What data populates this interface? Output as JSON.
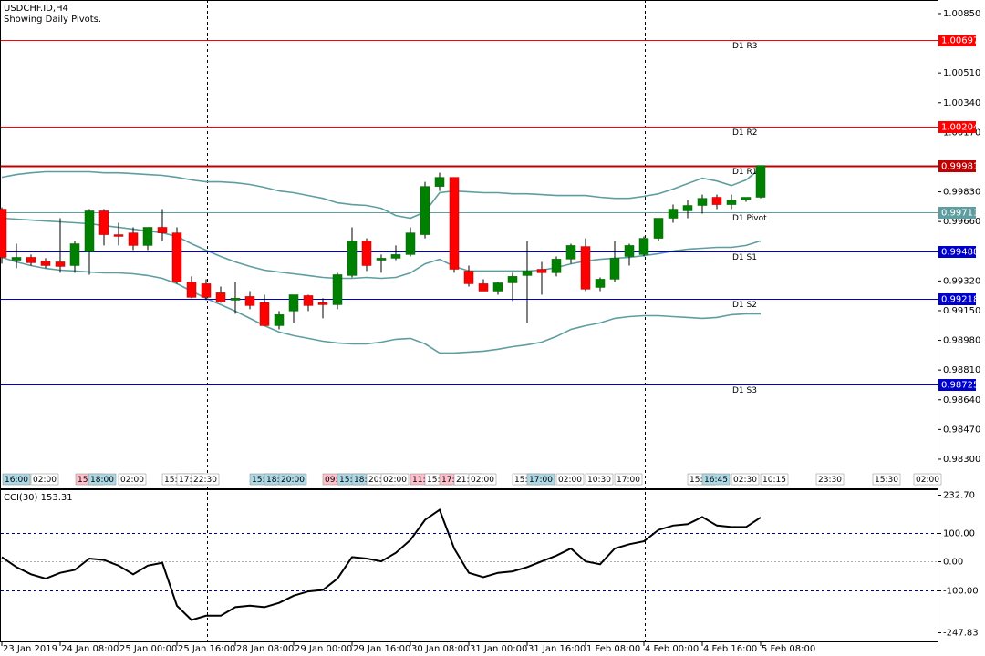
{
  "chart_data": [
    {
      "type": "candlestick",
      "title": "USDCHF.ID,H4",
      "subtitle": "Showing Daily Pivots.",
      "categories": [
        "23 Jan 2019",
        null,
        null,
        null,
        "24 Jan 08:00",
        null,
        null,
        null,
        "25 Jan 00:00",
        null,
        null,
        null,
        "25 Jan 16:00",
        null,
        null,
        null,
        "28 Jan 08:00",
        null,
        null,
        null,
        "29 Jan 00:00",
        null,
        null,
        null,
        "29 Jan 16:00",
        null,
        null,
        null,
        "30 Jan 08:00",
        null,
        null,
        null,
        "31 Jan 00:00",
        null,
        null,
        null,
        "31 Jan 16:00",
        null,
        null,
        null,
        "1 Feb 08:00",
        null,
        null,
        null,
        "4 Feb 00:00",
        null,
        null,
        null,
        "4 Feb 16:00",
        null,
        null,
        null,
        "5 Feb 08:00"
      ],
      "open": [
        0.99731,
        0.99439,
        0.99455,
        0.99434,
        0.99429,
        0.99408,
        0.99487,
        0.99721,
        0.99585,
        0.99595,
        0.99523,
        0.99627,
        0.99595,
        0.99314,
        0.99304,
        0.99252,
        0.9921,
        0.99231,
        0.99195,
        0.99064,
        0.99148,
        0.99236,
        0.99195,
        0.99184,
        0.99351,
        0.99549,
        0.99439,
        0.9945,
        0.99471,
        0.99585,
        0.99861,
        0.99913,
        0.99377,
        0.99304,
        0.99262,
        0.99309,
        0.99351,
        0.99387,
        0.99367,
        0.99445,
        0.99517,
        0.99283,
        0.9933,
        0.9946,
        0.99471,
        0.99564,
        0.99679,
        0.99721,
        0.99752,
        0.99799,
        0.99757,
        0.99783,
        0.99799
      ],
      "high": [
        0.99741,
        0.99533,
        0.99471,
        0.9945,
        0.99679,
        0.99549,
        0.99731,
        0.99731,
        0.99653,
        0.99627,
        0.99627,
        0.99731,
        0.99627,
        0.99346,
        0.9933,
        0.99288,
        0.99314,
        0.99262,
        0.99241,
        0.99148,
        0.99241,
        0.99241,
        0.99221,
        0.99367,
        0.99627,
        0.99564,
        0.99471,
        0.99523,
        0.99627,
        0.99887,
        0.99939,
        0.99913,
        0.99408,
        0.9933,
        0.99314,
        0.99367,
        0.99549,
        0.99429,
        0.9946,
        0.99533,
        0.99564,
        0.9934,
        0.99549,
        0.99533,
        0.99575,
        0.99679,
        0.99757,
        0.99783,
        0.99814,
        0.99814,
        0.99814,
        0.99799,
        0.99981
      ],
      "low": [
        0.99419,
        0.99393,
        0.99408,
        0.99393,
        0.99367,
        0.99367,
        0.99356,
        0.99523,
        0.99523,
        0.99497,
        0.99497,
        0.99549,
        0.99304,
        0.99221,
        0.9921,
        0.99195,
        0.99132,
        0.99158,
        0.99064,
        0.99043,
        0.9908,
        0.99148,
        0.99106,
        0.99158,
        0.9934,
        0.99377,
        0.99367,
        0.99439,
        0.9946,
        0.99564,
        0.99835,
        0.99367,
        0.99288,
        0.99262,
        0.99241,
        0.99205,
        0.9908,
        0.99241,
        0.99346,
        0.99419,
        0.99262,
        0.99262,
        0.99314,
        0.99408,
        0.9946,
        0.99549,
        0.99653,
        0.99679,
        0.99705,
        0.99731,
        0.99731,
        0.99773,
        0.99793
      ],
      "close": [
        0.99455,
        0.99455,
        0.99424,
        0.99408,
        0.99403,
        0.99533,
        0.99721,
        0.99585,
        0.99575,
        0.99523,
        0.99627,
        0.99595,
        0.99314,
        0.99226,
        0.99226,
        0.992,
        0.99221,
        0.99179,
        0.99064,
        0.99127,
        0.99241,
        0.99179,
        0.99184,
        0.99356,
        0.99549,
        0.99408,
        0.9945,
        0.99471,
        0.99595,
        0.99861,
        0.99913,
        0.99387,
        0.99304,
        0.99262,
        0.99309,
        0.99346,
        0.99377,
        0.99367,
        0.99445,
        0.99523,
        0.99273,
        0.9933,
        0.9945,
        0.99523,
        0.99564,
        0.99679,
        0.99731,
        0.99752,
        0.99793,
        0.99757,
        0.99783,
        0.99799,
        0.99981
      ],
      "up_color": "#008000",
      "down_color": "#ff0000",
      "ylim": [
        0.98232,
        1.00928
      ],
      "yticks": [
        {
          "value": 1.0085,
          "label": "1.00850"
        },
        {
          "value": 1.0051,
          "label": "1.00510"
        },
        {
          "value": 1.0034,
          "label": "1.00340"
        },
        {
          "value": 1.0017,
          "label": "1.00170"
        },
        {
          "value": 0.9983,
          "label": "0.99830"
        },
        {
          "value": 0.9966,
          "label": "0.99660"
        },
        {
          "value": 0.9932,
          "label": "0.99320"
        },
        {
          "value": 0.9915,
          "label": "0.99150"
        },
        {
          "value": 0.9898,
          "label": "0.98980"
        },
        {
          "value": 0.9881,
          "label": "0.98810"
        },
        {
          "value": 0.9864,
          "label": "0.98640"
        },
        {
          "value": 0.9847,
          "label": "0.98470"
        },
        {
          "value": 0.983,
          "label": "0.98300"
        }
      ],
      "bands": {
        "color": "#5f9ea0",
        "upper": [
          0.99913,
          0.99929,
          0.99939,
          0.99945,
          0.99945,
          0.99945,
          0.99945,
          0.99939,
          0.99939,
          0.99934,
          0.99929,
          0.99924,
          0.99913,
          0.99898,
          0.99887,
          0.99887,
          0.99882,
          0.99872,
          0.99856,
          0.99835,
          0.99825,
          0.99809,
          0.99793,
          0.99767,
          0.99757,
          0.99752,
          0.99736,
          0.99694,
          0.99679,
          0.99715,
          0.99825,
          0.99835,
          0.9983,
          0.99825,
          0.99825,
          0.99819,
          0.99819,
          0.99814,
          0.99809,
          0.99809,
          0.99809,
          0.99799,
          0.99793,
          0.99793,
          0.99804,
          0.99819,
          0.99846,
          0.99877,
          0.99908,
          0.99892,
          0.99866,
          0.99898,
          0.99965
        ],
        "middle": [
          0.99679,
          0.99674,
          0.99668,
          0.99663,
          0.99658,
          0.99653,
          0.99648,
          0.99637,
          0.99627,
          0.99616,
          0.99606,
          0.99595,
          0.99575,
          0.99533,
          0.99496,
          0.9946,
          0.99429,
          0.99403,
          0.99382,
          0.99371,
          0.99361,
          0.99351,
          0.9934,
          0.99335,
          0.99335,
          0.9934,
          0.99335,
          0.9934,
          0.99366,
          0.99418,
          0.99444,
          0.99403,
          0.99377,
          0.99377,
          0.99377,
          0.99377,
          0.99377,
          0.99382,
          0.99397,
          0.99418,
          0.99434,
          0.99444,
          0.9945,
          0.99455,
          0.99465,
          0.99476,
          0.99491,
          0.99502,
          0.99507,
          0.99512,
          0.99512,
          0.99523,
          0.99549
        ],
        "lower": [
          0.99455,
          0.99429,
          0.99408,
          0.99392,
          0.99382,
          0.99377,
          0.99371,
          0.99366,
          0.99366,
          0.99361,
          0.99351,
          0.99335,
          0.99304,
          0.99262,
          0.9922,
          0.99184,
          0.99147,
          0.99106,
          0.99064,
          0.99028,
          0.99007,
          0.98991,
          0.98975,
          0.98965,
          0.9896,
          0.9896,
          0.9897,
          0.98986,
          0.98991,
          0.9896,
          0.98908,
          0.98908,
          0.98913,
          0.98918,
          0.98929,
          0.98944,
          0.98955,
          0.9897,
          0.99002,
          0.99043,
          0.99064,
          0.9908,
          0.99106,
          0.99116,
          0.99121,
          0.99121,
          0.99116,
          0.99111,
          0.99106,
          0.99111,
          0.99127,
          0.99132,
          0.99132
        ]
      },
      "pivots": [
        {
          "name": "D1 R3",
          "value": 1.00697,
          "color": "#ff0000"
        },
        {
          "name": "D1 R2",
          "value": 1.00204,
          "color": "#ff0000"
        },
        {
          "name": "D1 R1",
          "value": 0.99981,
          "color": "#c00000"
        },
        {
          "name": "D1 Pivot",
          "value": 0.99711,
          "color": "#5f9ea0"
        },
        {
          "name": "D1 S1",
          "value": 0.99488,
          "color": "#0000cd"
        },
        {
          "name": "D1 S2",
          "value": 0.99218,
          "color": "#0000cd"
        },
        {
          "name": "D1 S3",
          "value": 0.98725,
          "color": "#0000cd"
        }
      ],
      "session_labels": [
        "16:00",
        "02:00",
        "15:",
        "18:00",
        "02:00",
        "15:",
        "17:",
        "22:30",
        "15:",
        "18:",
        "20:00",
        "09:",
        "15:",
        "18:",
        "20:",
        "02:00",
        "11:",
        "15:",
        "17:",
        "21:",
        "02:00",
        "15:",
        "17:00",
        "02:00",
        "10:30",
        "17:00",
        "15:",
        "16:45",
        "02:30",
        "10:15",
        "23:30",
        "15:30",
        "02:00"
      ]
    },
    {
      "type": "line",
      "title": "CCI(30) 153.31",
      "values": [
        15,
        -20,
        -45,
        -60,
        -40,
        -30,
        10,
        5,
        -15,
        -45,
        -15,
        -5,
        -155,
        -205,
        -190,
        -190,
        -160,
        -155,
        -160,
        -145,
        -120,
        -105,
        -100,
        -60,
        15,
        10,
        0,
        30,
        75,
        145,
        180,
        45,
        -40,
        -55,
        -40,
        -35,
        -20,
        0,
        20,
        45,
        0,
        -10,
        45,
        60,
        70,
        110,
        125,
        130,
        155,
        125,
        120,
        120,
        153.31
      ],
      "color": "#000000",
      "ylim": [
        -247.83,
        232.7
      ],
      "yticks": [
        {
          "value": 232.7,
          "label": "232.70"
        },
        {
          "value": 100,
          "label": "100.00"
        },
        {
          "value": 0,
          "label": "0.00"
        },
        {
          "value": -100,
          "label": "-100.00"
        },
        -247.83
      ]
    }
  ]
}
